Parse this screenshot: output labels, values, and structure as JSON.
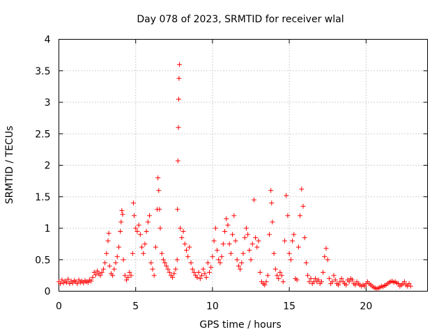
{
  "chart_data": {
    "type": "scatter",
    "title": "Day 078 of 2023, SRMTID for receiver wlal",
    "xlabel": "GPS time / hours",
    "ylabel": "SRMTID / TECUs",
    "xlim": [
      0,
      24
    ],
    "ylim": [
      0,
      4
    ],
    "grid": true,
    "marker": "plus",
    "marker_color": "#ff0000",
    "x_ticks": [
      0,
      5,
      10,
      15,
      20
    ],
    "x_tick_labels": [
      "0",
      "5",
      "10",
      "15",
      "20"
    ],
    "y_ticks": [
      0,
      0.5,
      1,
      1.5,
      2,
      2.5,
      3,
      3.5,
      4
    ],
    "y_tick_labels": [
      "0",
      "0.5",
      "1",
      "1.5",
      "2",
      "2.5",
      "3",
      "3.5",
      "4"
    ],
    "series": [
      {
        "name": "SRMTID",
        "points": [
          [
            0.0,
            0.15
          ],
          [
            0.1,
            0.12
          ],
          [
            0.2,
            0.18
          ],
          [
            0.3,
            0.13
          ],
          [
            0.4,
            0.16
          ],
          [
            0.5,
            0.14
          ],
          [
            0.6,
            0.19
          ],
          [
            0.7,
            0.12
          ],
          [
            0.8,
            0.16
          ],
          [
            0.9,
            0.13
          ],
          [
            1.0,
            0.17
          ],
          [
            1.1,
            0.15
          ],
          [
            1.2,
            0.12
          ],
          [
            1.3,
            0.18
          ],
          [
            1.4,
            0.14
          ],
          [
            1.5,
            0.16
          ],
          [
            1.6,
            0.13
          ],
          [
            1.7,
            0.17
          ],
          [
            1.8,
            0.15
          ],
          [
            1.9,
            0.14
          ],
          [
            2.0,
            0.18
          ],
          [
            2.1,
            0.16
          ],
          [
            2.2,
            0.22
          ],
          [
            2.3,
            0.3
          ],
          [
            2.4,
            0.26
          ],
          [
            2.5,
            0.32
          ],
          [
            2.6,
            0.28
          ],
          [
            2.7,
            0.25
          ],
          [
            2.8,
            0.3
          ],
          [
            2.9,
            0.35
          ],
          [
            3.0,
            0.45
          ],
          [
            3.1,
            0.6
          ],
          [
            3.2,
            0.8
          ],
          [
            3.25,
            0.92
          ],
          [
            3.3,
            0.4
          ],
          [
            3.4,
            0.28
          ],
          [
            3.5,
            0.25
          ],
          [
            3.6,
            0.35
          ],
          [
            3.7,
            0.45
          ],
          [
            3.8,
            0.55
          ],
          [
            3.9,
            0.7
          ],
          [
            4.0,
            0.95
          ],
          [
            4.05,
            1.1
          ],
          [
            4.1,
            1.28
          ],
          [
            4.15,
            1.22
          ],
          [
            4.2,
            0.5
          ],
          [
            4.3,
            0.25
          ],
          [
            4.4,
            0.18
          ],
          [
            4.5,
            0.22
          ],
          [
            4.6,
            0.3
          ],
          [
            4.7,
            0.25
          ],
          [
            4.8,
            0.6
          ],
          [
            4.85,
            1.4
          ],
          [
            4.9,
            1.2
          ],
          [
            5.0,
            1.0
          ],
          [
            5.1,
            0.95
          ],
          [
            5.2,
            1.05
          ],
          [
            5.3,
            0.9
          ],
          [
            5.4,
            0.7
          ],
          [
            5.5,
            0.6
          ],
          [
            5.6,
            0.75
          ],
          [
            5.7,
            0.95
          ],
          [
            5.8,
            1.1
          ],
          [
            5.9,
            1.2
          ],
          [
            6.0,
            0.45
          ],
          [
            6.1,
            0.35
          ],
          [
            6.2,
            0.25
          ],
          [
            6.3,
            0.7
          ],
          [
            6.4,
            1.3
          ],
          [
            6.45,
            1.8
          ],
          [
            6.5,
            1.6
          ],
          [
            6.55,
            1.3
          ],
          [
            6.6,
            1.0
          ],
          [
            6.7,
            0.6
          ],
          [
            6.8,
            0.5
          ],
          [
            6.9,
            0.45
          ],
          [
            7.0,
            0.4
          ],
          [
            7.1,
            0.35
          ],
          [
            7.2,
            0.3
          ],
          [
            7.3,
            0.25
          ],
          [
            7.4,
            0.22
          ],
          [
            7.5,
            0.28
          ],
          [
            7.6,
            0.35
          ],
          [
            7.7,
            0.5
          ],
          [
            7.72,
            1.3
          ],
          [
            7.75,
            2.07
          ],
          [
            7.78,
            2.6
          ],
          [
            7.8,
            3.05
          ],
          [
            7.82,
            3.38
          ],
          [
            7.85,
            3.6
          ],
          [
            7.9,
            1.0
          ],
          [
            8.0,
            0.85
          ],
          [
            8.1,
            0.95
          ],
          [
            8.2,
            0.75
          ],
          [
            8.3,
            0.65
          ],
          [
            8.4,
            0.55
          ],
          [
            8.5,
            0.7
          ],
          [
            8.6,
            0.45
          ],
          [
            8.7,
            0.35
          ],
          [
            8.8,
            0.3
          ],
          [
            8.9,
            0.25
          ],
          [
            9.0,
            0.22
          ],
          [
            9.1,
            0.3
          ],
          [
            9.2,
            0.2
          ],
          [
            9.3,
            0.25
          ],
          [
            9.4,
            0.35
          ],
          [
            9.5,
            0.28
          ],
          [
            9.6,
            0.22
          ],
          [
            9.7,
            0.45
          ],
          [
            9.8,
            0.3
          ],
          [
            9.9,
            0.38
          ],
          [
            10.0,
            0.55
          ],
          [
            10.1,
            0.8
          ],
          [
            10.2,
            1.0
          ],
          [
            10.3,
            0.65
          ],
          [
            10.4,
            0.5
          ],
          [
            10.5,
            0.45
          ],
          [
            10.6,
            0.55
          ],
          [
            10.7,
            0.75
          ],
          [
            10.8,
            0.95
          ],
          [
            10.9,
            1.15
          ],
          [
            11.0,
            1.05
          ],
          [
            11.1,
            0.75
          ],
          [
            11.2,
            0.6
          ],
          [
            11.3,
            0.9
          ],
          [
            11.4,
            1.2
          ],
          [
            11.5,
            0.8
          ],
          [
            11.6,
            0.5
          ],
          [
            11.7,
            0.4
          ],
          [
            11.8,
            0.35
          ],
          [
            11.9,
            0.45
          ],
          [
            12.0,
            0.6
          ],
          [
            12.1,
            0.85
          ],
          [
            12.2,
            1.0
          ],
          [
            12.3,
            0.9
          ],
          [
            12.4,
            0.65
          ],
          [
            12.5,
            0.5
          ],
          [
            12.6,
            0.75
          ],
          [
            12.7,
            1.45
          ],
          [
            12.8,
            0.85
          ],
          [
            12.9,
            0.7
          ],
          [
            13.0,
            0.8
          ],
          [
            13.1,
            0.3
          ],
          [
            13.2,
            0.15
          ],
          [
            13.3,
            0.12
          ],
          [
            13.4,
            0.1
          ],
          [
            13.5,
            0.15
          ],
          [
            13.6,
            0.25
          ],
          [
            13.7,
            0.9
          ],
          [
            13.8,
            1.6
          ],
          [
            13.85,
            1.4
          ],
          [
            13.9,
            1.1
          ],
          [
            14.0,
            0.6
          ],
          [
            14.1,
            0.35
          ],
          [
            14.2,
            0.25
          ],
          [
            14.3,
            0.2
          ],
          [
            14.4,
            0.3
          ],
          [
            14.5,
            0.25
          ],
          [
            14.6,
            0.15
          ],
          [
            14.7,
            0.8
          ],
          [
            14.8,
            1.52
          ],
          [
            14.9,
            1.2
          ],
          [
            15.0,
            0.6
          ],
          [
            15.1,
            0.5
          ],
          [
            15.2,
            0.8
          ],
          [
            15.3,
            0.9
          ],
          [
            15.4,
            0.2
          ],
          [
            15.5,
            0.18
          ],
          [
            15.6,
            0.7
          ],
          [
            15.7,
            1.2
          ],
          [
            15.8,
            1.62
          ],
          [
            15.9,
            1.35
          ],
          [
            16.0,
            0.85
          ],
          [
            16.1,
            0.45
          ],
          [
            16.2,
            0.25
          ],
          [
            16.3,
            0.15
          ],
          [
            16.4,
            0.2
          ],
          [
            16.5,
            0.12
          ],
          [
            16.6,
            0.15
          ],
          [
            16.7,
            0.2
          ],
          [
            16.8,
            0.15
          ],
          [
            16.9,
            0.18
          ],
          [
            17.0,
            0.12
          ],
          [
            17.1,
            0.15
          ],
          [
            17.2,
            0.3
          ],
          [
            17.3,
            0.55
          ],
          [
            17.4,
            0.68
          ],
          [
            17.5,
            0.5
          ],
          [
            17.6,
            0.2
          ],
          [
            17.7,
            0.12
          ],
          [
            17.8,
            0.15
          ],
          [
            17.9,
            0.25
          ],
          [
            18.0,
            0.18
          ],
          [
            18.1,
            0.12
          ],
          [
            18.2,
            0.1
          ],
          [
            18.3,
            0.15
          ],
          [
            18.4,
            0.2
          ],
          [
            18.5,
            0.15
          ],
          [
            18.6,
            0.12
          ],
          [
            18.7,
            0.1
          ],
          [
            18.8,
            0.18
          ],
          [
            18.9,
            0.15
          ],
          [
            19.0,
            0.2
          ],
          [
            19.1,
            0.18
          ],
          [
            19.2,
            0.12
          ],
          [
            19.3,
            0.1
          ],
          [
            19.4,
            0.15
          ],
          [
            19.5,
            0.12
          ],
          [
            19.6,
            0.1
          ],
          [
            19.7,
            0.08
          ],
          [
            19.8,
            0.1
          ],
          [
            19.9,
            0.08
          ],
          [
            20.0,
            0.12
          ],
          [
            20.1,
            0.15
          ],
          [
            20.2,
            0.12
          ],
          [
            20.3,
            0.1
          ],
          [
            20.4,
            0.08
          ],
          [
            20.5,
            0.06
          ],
          [
            20.6,
            0.05
          ],
          [
            20.7,
            0.04
          ],
          [
            20.8,
            0.05
          ],
          [
            20.9,
            0.06
          ],
          [
            21.0,
            0.08
          ],
          [
            21.1,
            0.07
          ],
          [
            21.2,
            0.09
          ],
          [
            21.3,
            0.1
          ],
          [
            21.4,
            0.12
          ],
          [
            21.5,
            0.14
          ],
          [
            21.6,
            0.15
          ],
          [
            21.7,
            0.16
          ],
          [
            21.8,
            0.14
          ],
          [
            21.9,
            0.15
          ],
          [
            22.0,
            0.13
          ],
          [
            22.1,
            0.12
          ],
          [
            22.2,
            0.08
          ],
          [
            22.3,
            0.1
          ],
          [
            22.4,
            0.12
          ],
          [
            22.5,
            0.15
          ],
          [
            22.6,
            0.1
          ],
          [
            22.7,
            0.08
          ],
          [
            22.8,
            0.12
          ],
          [
            22.9,
            0.08
          ]
        ]
      }
    ]
  }
}
